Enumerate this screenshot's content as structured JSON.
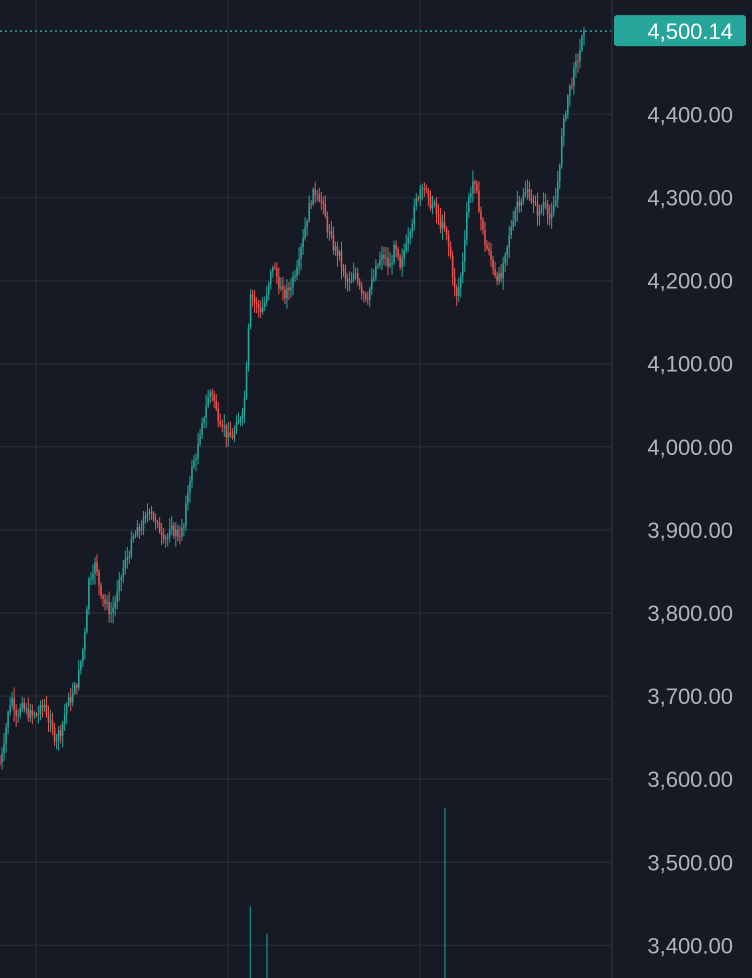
{
  "chart_data": {
    "type": "candlestick",
    "title": "",
    "xlabel": "",
    "ylabel": "",
    "ylim": [
      3380,
      4530
    ],
    "y_ticks": [
      "3,400.00",
      "3,500.00",
      "3,600.00",
      "3,700.00",
      "3,800.00",
      "3,900.00",
      "4,000.00",
      "4,100.00",
      "4,200.00",
      "4,300.00",
      "4,400.00"
    ],
    "y_tick_values": [
      3400,
      3500,
      3600,
      3700,
      3800,
      3900,
      4000,
      4100,
      4200,
      4300,
      4400
    ],
    "last_price": 4500.14,
    "last_price_label": "4,500.14",
    "grid": true,
    "colors": {
      "background": "#161a25",
      "grid": "#252935",
      "up": "#26a69a",
      "down": "#ef5350",
      "price_tag": "#26a69a",
      "tick_text": "#b2b5be"
    },
    "series": [
      {
        "values": [
          3620,
          3660,
          3700,
          3680,
          3685,
          3680,
          3675,
          3680,
          3690,
          3665,
          3650,
          3660,
          3690,
          3700,
          3720,
          3760,
          3840,
          3860,
          3830,
          3810,
          3800,
          3820,
          3850,
          3870,
          3890,
          3900,
          3910,
          3930,
          3905,
          3900,
          3890,
          3900,
          3895,
          3900,
          3960,
          3985,
          4010,
          4050,
          4070,
          4040,
          4030,
          4010,
          4015,
          4030,
          4060,
          4190,
          4170,
          4165,
          4180,
          4220,
          4200,
          4180,
          4190,
          4210,
          4240,
          4270,
          4300,
          4310,
          4290,
          4260,
          4240,
          4230,
          4200,
          4195,
          4210,
          4190,
          4180,
          4200,
          4220,
          4230,
          4215,
          4240,
          4210,
          4250,
          4270,
          4300,
          4320,
          4295,
          4290,
          4270,
          4260,
          4230,
          4175,
          4210,
          4290,
          4320,
          4295,
          4250,
          4230,
          4210,
          4200,
          4230,
          4270,
          4295,
          4300,
          4310,
          4290,
          4280,
          4300,
          4270,
          4300,
          4370,
          4420,
          4445,
          4470,
          4500.14
        ]
      }
    ],
    "volume": [
      {
        "bar": 45,
        "value": 0.42
      },
      {
        "bar": 48,
        "value": 0.26
      },
      {
        "bar": 80,
        "value": 1.0
      }
    ]
  }
}
